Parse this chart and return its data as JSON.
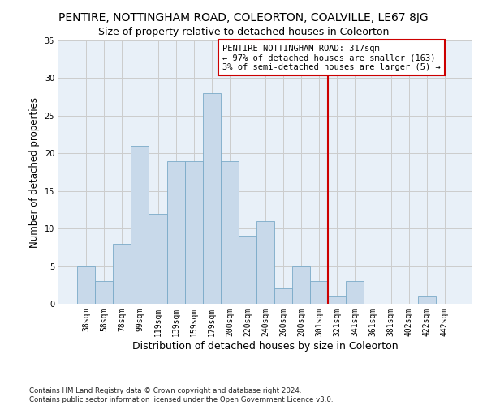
{
  "title": "PENTIRE, NOTTINGHAM ROAD, COLEORTON, COALVILLE, LE67 8JG",
  "subtitle": "Size of property relative to detached houses in Coleorton",
  "xlabel": "Distribution of detached houses by size in Coleorton",
  "ylabel": "Number of detached properties",
  "footer": "Contains HM Land Registry data © Crown copyright and database right 2024.\nContains public sector information licensed under the Open Government Licence v3.0.",
  "bar_labels": [
    "38sqm",
    "58sqm",
    "78sqm",
    "99sqm",
    "119sqm",
    "139sqm",
    "159sqm",
    "179sqm",
    "200sqm",
    "220sqm",
    "240sqm",
    "260sqm",
    "280sqm",
    "301sqm",
    "321sqm",
    "341sqm",
    "361sqm",
    "381sqm",
    "402sqm",
    "422sqm",
    "442sqm"
  ],
  "bar_values": [
    5,
    3,
    8,
    21,
    12,
    19,
    19,
    28,
    19,
    9,
    11,
    2,
    5,
    3,
    1,
    3,
    0,
    0,
    0,
    1,
    0
  ],
  "bar_color": "#c8d9ea",
  "bar_edge_color": "#7aaac8",
  "vline_x": 13.5,
  "vline_color": "#cc0000",
  "annotation_text": "PENTIRE NOTTINGHAM ROAD: 317sqm\n← 97% of detached houses are smaller (163)\n3% of semi-detached houses are larger (5) →",
  "annotation_box_color": "#ffffff",
  "annotation_box_edge_color": "#cc0000",
  "ylim": [
    0,
    35
  ],
  "grid_color": "#cccccc",
  "background_color": "#e8f0f8",
  "title_fontsize": 10,
  "subtitle_fontsize": 9,
  "xlabel_fontsize": 9,
  "ylabel_fontsize": 8.5,
  "tick_fontsize": 7,
  "annotation_fontsize": 7.5,
  "yticks": [
    0,
    5,
    10,
    15,
    20,
    25,
    30,
    35
  ]
}
